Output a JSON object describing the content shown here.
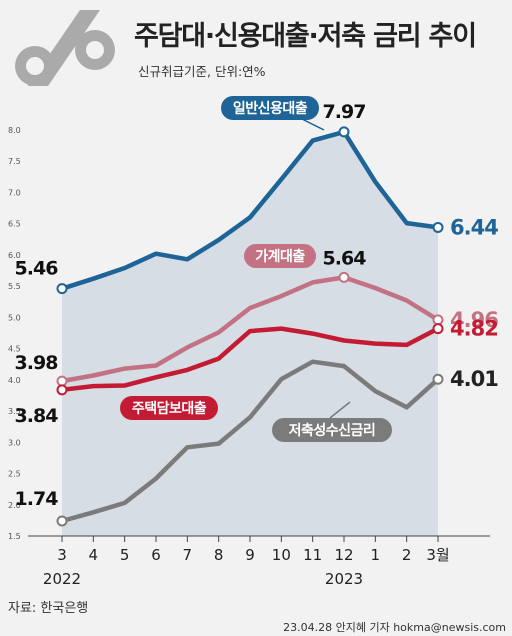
{
  "header": {
    "title": "주담대·신용대출·저축 금리 추이",
    "unit": "신규취급기준, 단위:연%"
  },
  "footer": {
    "source": "자료: 한국은행",
    "credit": "23.04.28 안지혜 기자 hokma@newsis.com"
  },
  "colors": {
    "background": "#f2f2f2",
    "shaded_area": "#d6dde5",
    "credit_loan": "#1e6497",
    "household_loan": "#c27283",
    "mortgage": "#c21b33",
    "savings": "#7b7b7b"
  },
  "chart_data": {
    "type": "line",
    "x": [
      "3",
      "4",
      "5",
      "6",
      "7",
      "8",
      "9",
      "10",
      "11",
      "12",
      "1",
      "2",
      "3월"
    ],
    "year_labels": [
      {
        "at": "3",
        "label": "2022"
      },
      {
        "at": "12",
        "label": "2023"
      }
    ],
    "ylim": [
      1.5,
      8.0
    ],
    "yticks": [
      "1.5",
      "2.0",
      "2.5",
      "3.0",
      "3.5",
      "4.0",
      "4.5",
      "5.0",
      "5.5",
      "6.0",
      "6.5",
      "7.0",
      "7.5",
      "8.0"
    ],
    "series": [
      {
        "name": "일반신용대출",
        "color": "#1e6497",
        "values": [
          5.46,
          5.62,
          5.79,
          6.02,
          5.93,
          6.24,
          6.6,
          7.21,
          7.83,
          7.97,
          7.17,
          6.51,
          6.44
        ],
        "value_labels": [
          {
            "index": 0,
            "text": "5.46"
          },
          {
            "index": 9,
            "text": "7.97"
          },
          {
            "index": 12,
            "text": "6.44"
          }
        ]
      },
      {
        "name": "가계대출",
        "color": "#c27283",
        "values": [
          3.98,
          4.07,
          4.18,
          4.23,
          4.52,
          4.76,
          5.15,
          5.34,
          5.56,
          5.64,
          5.47,
          5.27,
          4.96
        ],
        "value_labels": [
          {
            "index": 0,
            "text": "3.98"
          },
          {
            "index": 9,
            "text": "5.64"
          },
          {
            "index": 12,
            "text": "4.96"
          }
        ]
      },
      {
        "name": "주택담보대출",
        "color": "#c21b33",
        "values": [
          3.84,
          3.9,
          3.91,
          4.04,
          4.16,
          4.34,
          4.78,
          4.82,
          4.74,
          4.63,
          4.58,
          4.56,
          4.82
        ],
        "value_labels": [
          {
            "index": 0,
            "text": "3.84"
          },
          {
            "index": 12,
            "text": "4.82"
          }
        ]
      },
      {
        "name": "저축성수신금리",
        "color": "#7b7b7b",
        "values": [
          1.74,
          1.88,
          2.03,
          2.42,
          2.92,
          2.98,
          3.4,
          4.01,
          4.29,
          4.22,
          3.82,
          3.56,
          4.01
        ],
        "value_labels": [
          {
            "index": 0,
            "text": "1.74"
          },
          {
            "index": 12,
            "text": "4.01"
          }
        ]
      }
    ],
    "shaded_area_under": "일반신용대출",
    "grid": false
  }
}
